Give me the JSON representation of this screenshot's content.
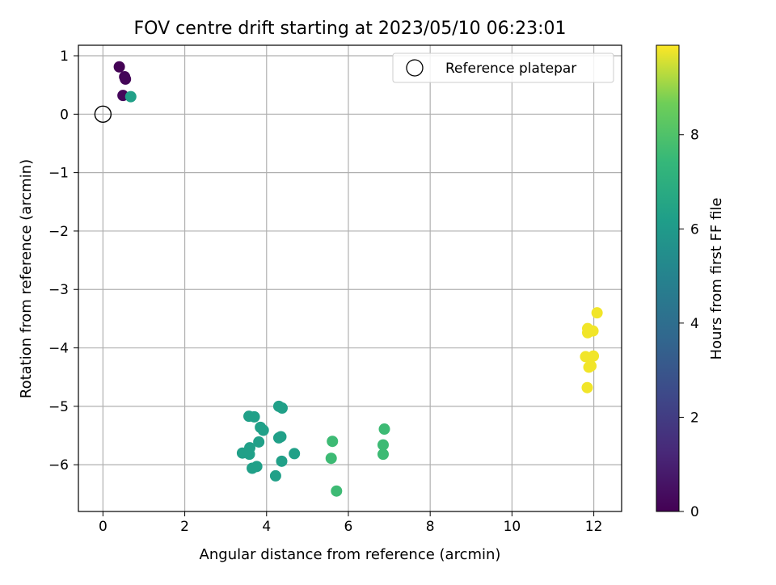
{
  "chart_data": {
    "type": "scatter",
    "title": "FOV centre drift starting at 2023/05/10 06:23:01",
    "xlabel": "Angular distance from reference (arcmin)",
    "ylabel": "Rotation from reference (arcmin)",
    "xlim": [
      -0.6,
      12.68
    ],
    "ylim": [
      -6.8,
      1.18
    ],
    "xticks": [
      0,
      2,
      4,
      6,
      8,
      10,
      12
    ],
    "yticks": [
      1,
      0,
      -1,
      -2,
      -3,
      -4,
      -5,
      -6
    ],
    "ytick_labels": [
      "1",
      "0",
      "−1",
      "−2",
      "−3",
      "−4",
      "−5",
      "−6"
    ],
    "grid": true,
    "legend": {
      "position": "top-right",
      "entries": [
        "Reference platepar"
      ]
    },
    "reference_point": {
      "name": "Reference platepar",
      "x": 0,
      "y": 0
    },
    "colormap": "viridis",
    "colorbar": {
      "label": "Hours from first FF file",
      "ticks": [
        0,
        2,
        4,
        6,
        8
      ],
      "min": 0,
      "max": 9.9
    },
    "points": [
      {
        "x": 0.4,
        "y": 0.81,
        "c": 0.05
      },
      {
        "x": 0.53,
        "y": 0.64,
        "c": 0.1
      },
      {
        "x": 0.55,
        "y": 0.6,
        "c": 0.15
      },
      {
        "x": 0.49,
        "y": 0.32,
        "c": 0.2
      },
      {
        "x": 0.68,
        "y": 0.3,
        "c": 6.3
      },
      {
        "x": 3.57,
        "y": -5.17,
        "c": 6.3
      },
      {
        "x": 3.7,
        "y": -5.18,
        "c": 6.3
      },
      {
        "x": 4.3,
        "y": -5.0,
        "c": 6.3
      },
      {
        "x": 4.38,
        "y": -5.03,
        "c": 6.3
      },
      {
        "x": 3.85,
        "y": -5.36,
        "c": 6.3
      },
      {
        "x": 3.92,
        "y": -5.41,
        "c": 6.3
      },
      {
        "x": 4.3,
        "y": -5.54,
        "c": 6.3
      },
      {
        "x": 4.35,
        "y": -5.52,
        "c": 6.3
      },
      {
        "x": 3.81,
        "y": -5.61,
        "c": 6.3
      },
      {
        "x": 3.59,
        "y": -5.71,
        "c": 6.3
      },
      {
        "x": 3.41,
        "y": -5.8,
        "c": 6.3
      },
      {
        "x": 3.58,
        "y": -5.82,
        "c": 6.3
      },
      {
        "x": 4.68,
        "y": -5.81,
        "c": 6.3
      },
      {
        "x": 4.37,
        "y": -5.94,
        "c": 6.3
      },
      {
        "x": 3.76,
        "y": -6.03,
        "c": 6.3
      },
      {
        "x": 3.65,
        "y": -6.06,
        "c": 6.3
      },
      {
        "x": 4.22,
        "y": -6.19,
        "c": 6.3
      },
      {
        "x": 5.61,
        "y": -5.6,
        "c": 7.6
      },
      {
        "x": 5.58,
        "y": -5.89,
        "c": 7.6
      },
      {
        "x": 5.71,
        "y": -6.45,
        "c": 7.6
      },
      {
        "x": 6.88,
        "y": -5.39,
        "c": 7.6
      },
      {
        "x": 6.85,
        "y": -5.66,
        "c": 7.6
      },
      {
        "x": 6.85,
        "y": -5.82,
        "c": 7.6
      },
      {
        "x": 12.08,
        "y": -3.4,
        "c": 9.8
      },
      {
        "x": 11.85,
        "y": -3.67,
        "c": 9.8
      },
      {
        "x": 11.85,
        "y": -3.74,
        "c": 9.8
      },
      {
        "x": 11.98,
        "y": -3.71,
        "c": 9.8
      },
      {
        "x": 11.8,
        "y": -4.15,
        "c": 9.8
      },
      {
        "x": 11.99,
        "y": -4.14,
        "c": 9.8
      },
      {
        "x": 11.88,
        "y": -4.33,
        "c": 9.8
      },
      {
        "x": 11.93,
        "y": -4.31,
        "c": 9.8
      },
      {
        "x": 11.84,
        "y": -4.68,
        "c": 9.8
      }
    ]
  }
}
